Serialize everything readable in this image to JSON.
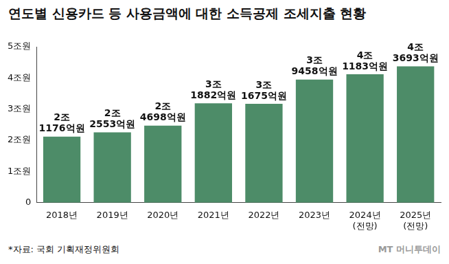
{
  "chart_data": {
    "type": "bar",
    "title": "연도별 신용카드 등 사용금액에 대한 소득공제 조세지출 현황",
    "categories": [
      "2018년",
      "2019년",
      "2020년",
      "2021년",
      "2022년",
      "2023년",
      "2024년 (전망)",
      "2025년 (전망)"
    ],
    "values": [
      2.1176,
      2.2553,
      2.4698,
      3.1882,
      3.1675,
      3.9458,
      4.1183,
      4.3693
    ],
    "value_labels": [
      "2조 1176억원",
      "2조 2553억원",
      "2조 4698억원",
      "3조 1882억원",
      "3조 1675억원",
      "3조 9458억원",
      "4조 1183억원",
      "4조 3693억원"
    ],
    "data_labels": true,
    "color": "#4d8c68",
    "ylim": [
      0,
      5
    ],
    "yticks": [
      0,
      {
        "value": 1,
        "label": "1조원"
      },
      {
        "value": 2,
        "label": "2조원"
      },
      {
        "value": 3,
        "label": "3조원"
      },
      {
        "value": 4,
        "label": "4조원"
      },
      {
        "value": 5,
        "label": "5조원"
      }
    ],
    "grid": false,
    "source": "*자료: 국회 기획재정위원회",
    "watermark": "MT 머니투데이"
  }
}
